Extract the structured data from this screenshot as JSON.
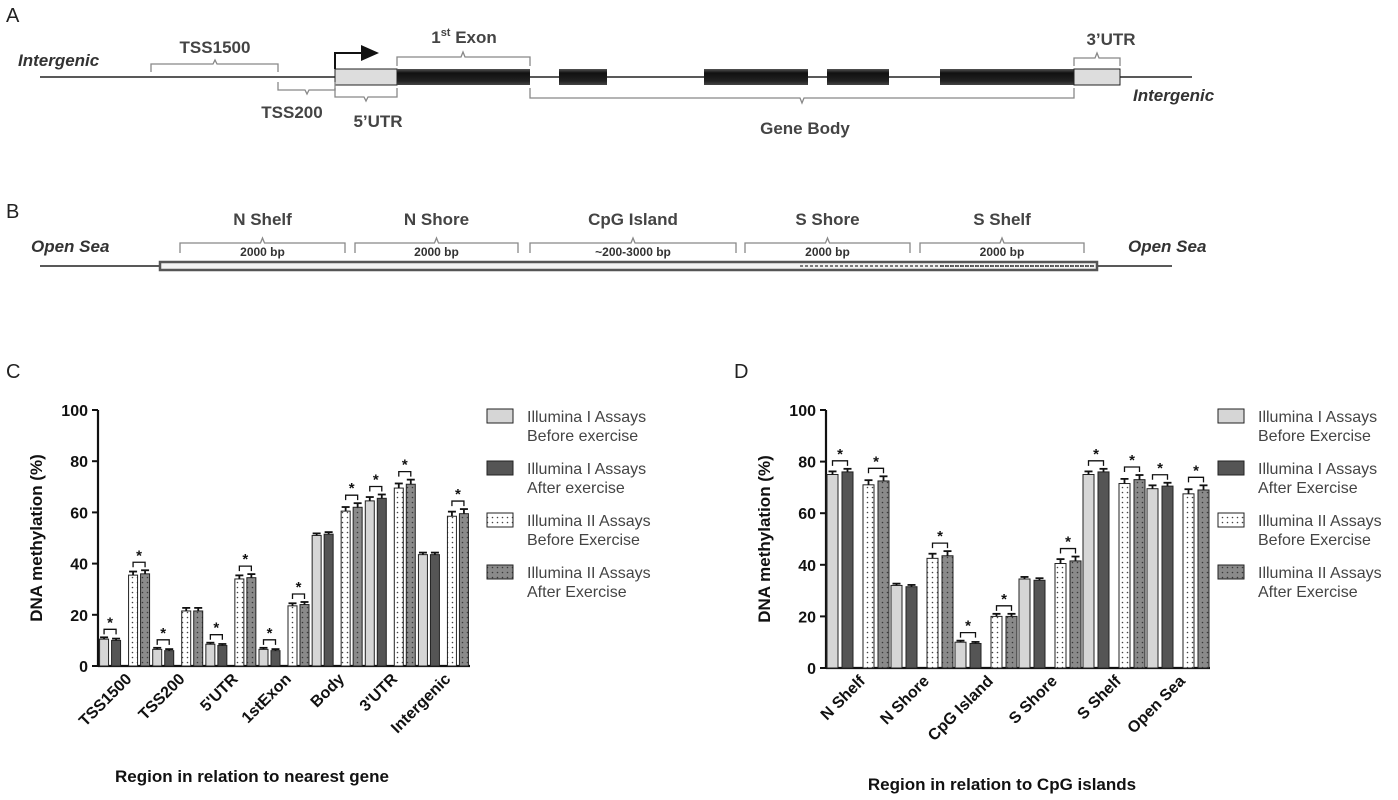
{
  "panels": {
    "a": "A",
    "b": "B",
    "c": "C",
    "d": "D"
  },
  "gene_diagram": {
    "intergenic_left": "Intergenic",
    "intergenic_right": "Intergenic",
    "tss1500": "TSS1500",
    "tss200": "TSS200",
    "utr5": "5’UTR",
    "exon1_pre": "1",
    "exon1_sup": "st",
    "exon1_post": " Exon",
    "utr3": "3’UTR",
    "gene_body": "Gene Body"
  },
  "cpg_diagram": {
    "open_sea_left": "Open Sea",
    "open_sea_right": "Open Sea",
    "regions": [
      {
        "name": "N Shelf",
        "size": "2000 bp"
      },
      {
        "name": "N Shore",
        "size": "2000 bp"
      },
      {
        "name": "CpG Island",
        "size": "~200-3000 bp"
      },
      {
        "name": "S Shore",
        "size": "2000 bp"
      },
      {
        "name": "S Shelf",
        "size": "2000 bp"
      }
    ]
  },
  "chart_data": [
    {
      "type": "bar",
      "panel": "C",
      "ylabel": "DNA methylation (%)",
      "xlabel": "Region in relation to nearest gene",
      "ylim": [
        0,
        100
      ],
      "yticks": [
        "0",
        "20",
        "40",
        "60",
        "80",
        "100"
      ],
      "categories": [
        "TSS1500",
        "TSS200",
        "5'UTR",
        "1stExon",
        "Body",
        "3'UTR",
        "Intergenic"
      ],
      "series": [
        {
          "name": "Illumina I Assays Before exercise",
          "legend_lines": [
            "Illumina I Assays",
            "Before exercise"
          ],
          "style": "light",
          "values": [
            10.5,
            6.5,
            8.5,
            6.5,
            51,
            64.5,
            43.5
          ],
          "errors": [
            0.7,
            0.6,
            0.6,
            0.6,
            0.8,
            1.5,
            0.8
          ]
        },
        {
          "name": "Illumina I Assays After exercise",
          "legend_lines": [
            "Illumina I Assays",
            "After exercise"
          ],
          "style": "dark",
          "values": [
            10,
            6,
            8,
            6,
            51.5,
            65.5,
            43.5
          ],
          "errors": [
            0.7,
            0.6,
            0.6,
            0.6,
            0.8,
            1.5,
            0.8
          ]
        },
        {
          "name": "Illumina II Assays Before Exercise",
          "legend_lines": [
            "Illumina II Assays",
            "Before Exercise"
          ],
          "style": "dotted-white",
          "values": [
            35.5,
            21.5,
            34,
            23.5,
            60.5,
            69.5,
            58.5
          ],
          "errors": [
            1.4,
            1.2,
            1.4,
            1.0,
            1.6,
            1.8,
            1.8
          ]
        },
        {
          "name": "Illumina II Assays After Exercise",
          "legend_lines": [
            "Illumina II Assays",
            "After Exercise"
          ],
          "style": "dotted-gray",
          "values": [
            36,
            21.5,
            34.5,
            24,
            62,
            71,
            59.5
          ],
          "errors": [
            1.4,
            1.2,
            1.4,
            1.0,
            1.6,
            1.8,
            1.8
          ]
        }
      ],
      "significance": [
        {
          "category": 0,
          "pairs": [
            [
              0,
              1
            ],
            [
              2,
              3
            ]
          ]
        },
        {
          "category": 1,
          "pairs": [
            [
              0,
              1
            ]
          ]
        },
        {
          "category": 2,
          "pairs": [
            [
              0,
              1
            ],
            [
              2,
              3
            ]
          ]
        },
        {
          "category": 3,
          "pairs": [
            [
              0,
              1
            ],
            [
              2,
              3
            ]
          ]
        },
        {
          "category": 4,
          "pairs": [
            [
              2,
              3
            ]
          ]
        },
        {
          "category": 5,
          "pairs": [
            [
              0,
              1
            ],
            [
              2,
              3
            ]
          ]
        },
        {
          "category": 6,
          "pairs": [
            [
              2,
              3
            ]
          ]
        }
      ],
      "significance_mark": "*"
    },
    {
      "type": "bar",
      "panel": "D",
      "ylabel": "DNA methylation (%)",
      "xlabel": "Region in relation to CpG islands",
      "ylim": [
        0,
        100
      ],
      "yticks": [
        "0",
        "20",
        "40",
        "60",
        "80",
        "100"
      ],
      "categories": [
        "N Shelf",
        "N Shore",
        "CpG Island",
        "S Shore",
        "S Shelf",
        "Open Sea"
      ],
      "series": [
        {
          "name": "Illumina I Assays Before Exercise",
          "legend_lines": [
            "Illumina I Assays",
            "Before Exercise"
          ],
          "style": "light",
          "values": [
            75,
            32,
            10,
            34.5,
            75,
            69.5
          ],
          "errors": [
            1.2,
            0.7,
            0.6,
            0.8,
            1.2,
            1.3
          ]
        },
        {
          "name": "Illumina I Assays After Exercise",
          "legend_lines": [
            "Illumina I Assays",
            "After Exercise"
          ],
          "style": "dark",
          "values": [
            76,
            31.5,
            9.5,
            34,
            76,
            70.5
          ],
          "errors": [
            1.2,
            0.7,
            0.6,
            0.8,
            1.2,
            1.3
          ]
        },
        {
          "name": "Illumina II Assays Before Exercise",
          "legend_lines": [
            "Illumina II Assays",
            "Before Exercise"
          ],
          "style": "dotted-white",
          "values": [
            71,
            42.5,
            20,
            40.5,
            71.5,
            67.5
          ],
          "errors": [
            1.8,
            1.8,
            1.0,
            1.7,
            1.8,
            1.8
          ]
        },
        {
          "name": "Illumina II Assays After Exercise",
          "legend_lines": [
            "Illumina II Assays",
            "After Exercise"
          ],
          "style": "dotted-gray",
          "values": [
            72.5,
            43.5,
            20,
            41.5,
            73,
            69
          ],
          "errors": [
            1.8,
            1.8,
            1.0,
            1.7,
            1.8,
            1.8
          ]
        }
      ],
      "significance": [
        {
          "category": 0,
          "pairs": [
            [
              0,
              1
            ],
            [
              2,
              3
            ]
          ]
        },
        {
          "category": 1,
          "pairs": [
            [
              2,
              3
            ]
          ]
        },
        {
          "category": 2,
          "pairs": [
            [
              0,
              1
            ],
            [
              2,
              3
            ]
          ]
        },
        {
          "category": 3,
          "pairs": [
            [
              2,
              3
            ]
          ]
        },
        {
          "category": 4,
          "pairs": [
            [
              0,
              1
            ],
            [
              2,
              3
            ]
          ]
        },
        {
          "category": 5,
          "pairs": [
            [
              0,
              1
            ],
            [
              2,
              3
            ]
          ]
        }
      ],
      "significance_mark": "*"
    }
  ],
  "colors": {
    "light_bar": "#d6d6d6",
    "dark_bar": "#555555",
    "dotted_gray_bar": "#8a8a8a",
    "exon": "#262626",
    "utr": "#dddddd",
    "brace": "#888888"
  }
}
